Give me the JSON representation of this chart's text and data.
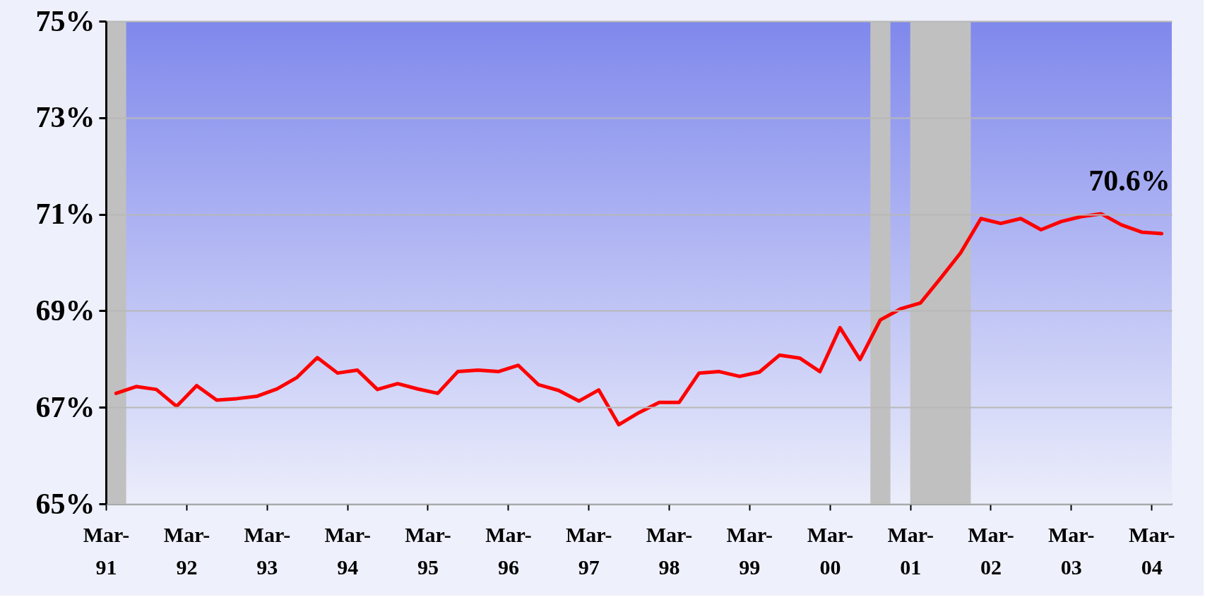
{
  "chart_data": {
    "type": "line",
    "x": [
      "1991-04-16",
      "1991-07-16",
      "1991-10-16",
      "1992-01-16",
      "1992-04-16",
      "1992-07-16",
      "1992-10-16",
      "1993-01-16",
      "1993-04-16",
      "1993-07-16",
      "1993-10-16",
      "1994-01-16",
      "1994-04-16",
      "1994-07-16",
      "1994-10-16",
      "1995-01-16",
      "1995-04-16",
      "1995-07-16",
      "1995-10-16",
      "1996-01-16",
      "1996-04-16",
      "1996-07-16",
      "1996-10-16",
      "1997-01-16",
      "1997-04-16",
      "1997-07-16",
      "1997-10-16",
      "1998-01-16",
      "1998-04-16",
      "1998-07-16",
      "1998-10-16",
      "1999-01-16",
      "1999-04-16",
      "1999-07-16",
      "1999-10-16",
      "2000-01-16",
      "2000-04-16",
      "2000-07-16",
      "2000-10-16",
      "2001-01-16",
      "2001-04-16",
      "2001-07-16",
      "2001-10-16",
      "2002-01-16",
      "2002-04-16",
      "2002-07-16",
      "2002-10-16",
      "2003-01-16",
      "2003-04-16",
      "2003-07-16",
      "2003-10-16",
      "2004-01-16",
      "2004-04-16"
    ],
    "series": [
      {
        "color": "#ff0000",
        "values": [
          67.29,
          67.43,
          67.37,
          67.02,
          67.45,
          67.15,
          67.18,
          67.23,
          67.38,
          67.62,
          68.03,
          67.71,
          67.77,
          67.37,
          67.49,
          67.38,
          67.29,
          67.74,
          67.77,
          67.74,
          67.87,
          67.47,
          67.35,
          67.13,
          67.36,
          66.64,
          66.89,
          67.1,
          67.1,
          67.71,
          67.74,
          67.64,
          67.73,
          68.08,
          68.02,
          67.74,
          68.65,
          67.99,
          68.81,
          69.04,
          69.16,
          69.67,
          70.2,
          70.91,
          70.81,
          70.91,
          70.68,
          70.85,
          70.95,
          71.01,
          70.78,
          70.63,
          70.6
        ]
      }
    ],
    "xlim": [
      "1991-03-01",
      "2004-06-01"
    ],
    "xticks": [
      {
        "value": "1991-03-01",
        "label": "Mar-91"
      },
      {
        "value": "1992-03-01",
        "label": "Mar-92"
      },
      {
        "value": "1993-03-01",
        "label": "Mar-93"
      },
      {
        "value": "1994-03-01",
        "label": "Mar-94"
      },
      {
        "value": "1995-03-01",
        "label": "Mar-95"
      },
      {
        "value": "1996-03-01",
        "label": "Mar-96"
      },
      {
        "value": "1997-03-01",
        "label": "Mar-97"
      },
      {
        "value": "1998-03-01",
        "label": "Mar-98"
      },
      {
        "value": "1999-03-01",
        "label": "Mar-99"
      },
      {
        "value": "2000-03-01",
        "label": "Mar-00"
      },
      {
        "value": "2001-03-01",
        "label": "Mar-01"
      },
      {
        "value": "2002-03-01",
        "label": "Mar-02"
      },
      {
        "value": "2003-03-01",
        "label": "Mar-03"
      },
      {
        "value": "2004-03-01",
        "label": "Mar-04"
      }
    ],
    "ylim": [
      65,
      75
    ],
    "yticks": [
      {
        "value": 65,
        "label": "65%"
      },
      {
        "value": 67,
        "label": "67%"
      },
      {
        "value": 69,
        "label": "69%"
      },
      {
        "value": 71,
        "label": "71%"
      },
      {
        "value": 73,
        "label": "73%"
      },
      {
        "value": 75,
        "label": "75%"
      }
    ],
    "bands": [
      {
        "axis": "x",
        "from": "1991-03-01",
        "to": "1991-06-01",
        "color": "#c0c0c0"
      },
      {
        "axis": "x",
        "from": "2000-09-01",
        "to": "2000-12-01",
        "color": "#c0c0c0"
      },
      {
        "axis": "x",
        "from": "2001-03-01",
        "to": "2001-12-01",
        "color": "#c0c0c0"
      }
    ],
    "annotations": [
      {
        "text": "70.6%",
        "x": "2004-04-16",
        "y": 70.6
      }
    ],
    "grid": "y",
    "marker": "none",
    "line_style": "solid"
  }
}
